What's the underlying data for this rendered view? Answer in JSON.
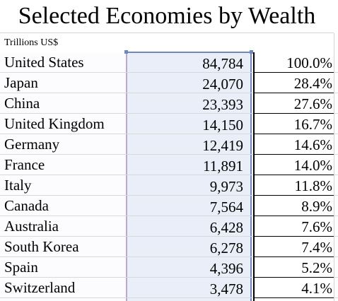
{
  "title": "Selected Economies by Wealth",
  "units": "Trillions US$",
  "rows": [
    {
      "country": "United States",
      "value": "84,784",
      "share": "100.0%"
    },
    {
      "country": "Japan",
      "value": "24,070",
      "share": "28.4%"
    },
    {
      "country": "China",
      "value": "23,393",
      "share": "27.6%"
    },
    {
      "country": "United Kingdom",
      "value": "14,150",
      "share": "16.7%"
    },
    {
      "country": "Germany",
      "value": "12,419",
      "share": "14.6%"
    },
    {
      "country": "France",
      "value": "11,891",
      "share": "14.0%"
    },
    {
      "country": "Italy",
      "value": "9,973",
      "share": "11.8%"
    },
    {
      "country": "Canada",
      "value": "7,564",
      "share": "8.9%"
    },
    {
      "country": "Australia",
      "value": "6,428",
      "share": "7.6%"
    },
    {
      "country": "South Korea",
      "value": "6,278",
      "share": "7.4%"
    },
    {
      "country": "Spain",
      "value": "4,396",
      "share": "5.2%"
    },
    {
      "country": "Switzerland",
      "value": "3,478",
      "share": "4.1%"
    }
  ]
}
